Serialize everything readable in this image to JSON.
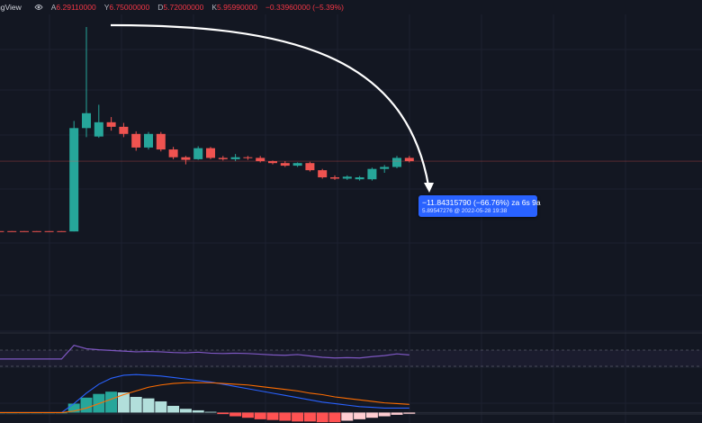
{
  "header": {
    "brand_fragment": "ngView",
    "icon": "eye-icon",
    "open_key": "A",
    "open_value": "6.29110000",
    "high_key": "Y",
    "high_value": "6.75000000",
    "low_key": "D",
    "low_value": "5.72000000",
    "close_key": "K",
    "close_value": "5.95990000",
    "change_value": "−0.33960000 (−5.39%)"
  },
  "measure_tooltip": {
    "line1": "−11.84315790 (−66.76%) za 6s 9a",
    "line2": "5.89547276 @ 2022-05-28  19:38"
  },
  "colors": {
    "background": "#131722",
    "up": "#26a69a",
    "down": "#ef5350",
    "tooltip": "#2962ff",
    "arrow": "#ffffff",
    "rsi_line": "#7e57c2",
    "macd_line": "#2962ff",
    "signal_line": "#ff6d00"
  },
  "chart_data": {
    "type": "candlestick",
    "candles": [
      {
        "o": 6.0,
        "h": 6.0,
        "l": 5.9,
        "c": 5.95
      },
      {
        "o": 6.0,
        "h": 6.0,
        "l": 5.9,
        "c": 5.95
      },
      {
        "o": 6.0,
        "h": 6.0,
        "l": 5.9,
        "c": 5.95
      },
      {
        "o": 6.0,
        "h": 6.0,
        "l": 5.9,
        "c": 5.95
      },
      {
        "o": 6.0,
        "h": 6.0,
        "l": 5.9,
        "c": 5.95
      },
      {
        "o": 6.0,
        "h": 6.0,
        "l": 5.9,
        "c": 5.95
      },
      {
        "o": 6.0,
        "h": 6.0,
        "l": 5.9,
        "c": 5.95
      },
      {
        "o": 6.0,
        "h": 6.0,
        "l": 5.9,
        "c": 5.95
      },
      {
        "o": 6.0,
        "h": 6.0,
        "l": 5.9,
        "c": 5.95
      },
      {
        "o": 5.95,
        "h": 23.0,
        "l": 5.95,
        "c": 21.9
      },
      {
        "o": 21.9,
        "h": 37.5,
        "l": 20.5,
        "c": 24.2
      },
      {
        "o": 20.6,
        "h": 25.5,
        "l": 20.4,
        "c": 22.8
      },
      {
        "o": 22.8,
        "h": 23.6,
        "l": 21.5,
        "c": 22.1
      },
      {
        "o": 22.1,
        "h": 22.7,
        "l": 20.5,
        "c": 21.0
      },
      {
        "o": 21.0,
        "h": 21.4,
        "l": 18.4,
        "c": 18.9
      },
      {
        "o": 18.9,
        "h": 21.3,
        "l": 18.6,
        "c": 21.0
      },
      {
        "o": 21.0,
        "h": 21.3,
        "l": 18.3,
        "c": 18.6
      },
      {
        "o": 18.6,
        "h": 19.0,
        "l": 17.1,
        "c": 17.4
      },
      {
        "o": 17.4,
        "h": 17.6,
        "l": 16.3,
        "c": 17.0
      },
      {
        "o": 17.1,
        "h": 19.1,
        "l": 17.0,
        "c": 18.8
      },
      {
        "o": 18.8,
        "h": 19.0,
        "l": 17.1,
        "c": 17.3
      },
      {
        "o": 17.3,
        "h": 17.6,
        "l": 16.9,
        "c": 17.1
      },
      {
        "o": 17.1,
        "h": 17.9,
        "l": 16.8,
        "c": 17.4
      },
      {
        "o": 17.4,
        "h": 17.6,
        "l": 17.0,
        "c": 17.3
      },
      {
        "o": 17.3,
        "h": 17.6,
        "l": 16.6,
        "c": 16.8
      },
      {
        "o": 16.8,
        "h": 16.9,
        "l": 16.3,
        "c": 16.5
      },
      {
        "o": 16.5,
        "h": 16.8,
        "l": 15.9,
        "c": 16.1
      },
      {
        "o": 16.1,
        "h": 16.6,
        "l": 15.9,
        "c": 16.5
      },
      {
        "o": 16.5,
        "h": 16.7,
        "l": 15.2,
        "c": 15.4
      },
      {
        "o": 15.4,
        "h": 15.6,
        "l": 14.1,
        "c": 14.3
      },
      {
        "o": 14.3,
        "h": 14.6,
        "l": 13.9,
        "c": 14.1
      },
      {
        "o": 14.1,
        "h": 14.6,
        "l": 13.9,
        "c": 14.4
      },
      {
        "o": 14.0,
        "h": 14.5,
        "l": 13.8,
        "c": 14.3
      },
      {
        "o": 14.0,
        "h": 15.8,
        "l": 13.8,
        "c": 15.6
      },
      {
        "o": 15.6,
        "h": 16.2,
        "l": 15.0,
        "c": 15.9
      },
      {
        "o": 15.9,
        "h": 17.6,
        "l": 15.7,
        "c": 17.3
      },
      {
        "o": 17.3,
        "h": 17.6,
        "l": 16.6,
        "c": 16.8
      }
    ],
    "last_price": 16.8,
    "price_scale": {
      "min": 0,
      "max": 37.5
    },
    "rsi": [
      45,
      45,
      45,
      45,
      45,
      45,
      45,
      45,
      45,
      85,
      75,
      72,
      70,
      68,
      66,
      67,
      66,
      64,
      63,
      65,
      62,
      61,
      62,
      61,
      59,
      57,
      56,
      58,
      54,
      50,
      48,
      49,
      48,
      52,
      55,
      60,
      57
    ],
    "rsi_range": [
      0,
      100
    ],
    "macd_histogram": [
      0,
      0,
      0,
      0,
      0,
      0,
      0,
      0,
      0,
      0.6,
      1.0,
      1.25,
      1.4,
      1.35,
      1.05,
      0.95,
      0.75,
      0.45,
      0.25,
      0.15,
      0.05,
      -0.1,
      -0.25,
      -0.35,
      -0.45,
      -0.5,
      -0.55,
      -0.6,
      -0.6,
      -0.65,
      -0.65,
      -0.55,
      -0.45,
      -0.35,
      -0.25,
      -0.15,
      -0.08
    ],
    "macd_line": [
      0,
      0,
      0,
      0,
      0,
      0,
      0,
      0,
      0,
      0.6,
      1.3,
      1.9,
      2.3,
      2.5,
      2.55,
      2.5,
      2.45,
      2.35,
      2.25,
      2.15,
      2.05,
      1.9,
      1.75,
      1.6,
      1.45,
      1.3,
      1.15,
      1.0,
      0.85,
      0.7,
      0.6,
      0.5,
      0.4,
      0.35,
      0.3,
      0.3,
      0.3
    ],
    "signal_line": [
      0,
      0,
      0,
      0,
      0,
      0,
      0,
      0,
      0,
      0.1,
      0.3,
      0.6,
      0.9,
      1.2,
      1.45,
      1.7,
      1.85,
      1.95,
      2.0,
      2.0,
      2.0,
      1.95,
      1.9,
      1.85,
      1.75,
      1.65,
      1.55,
      1.45,
      1.3,
      1.2,
      1.05,
      0.95,
      0.85,
      0.75,
      0.65,
      0.6,
      0.55
    ],
    "macd_range": [
      -0.7,
      2.8
    ]
  }
}
